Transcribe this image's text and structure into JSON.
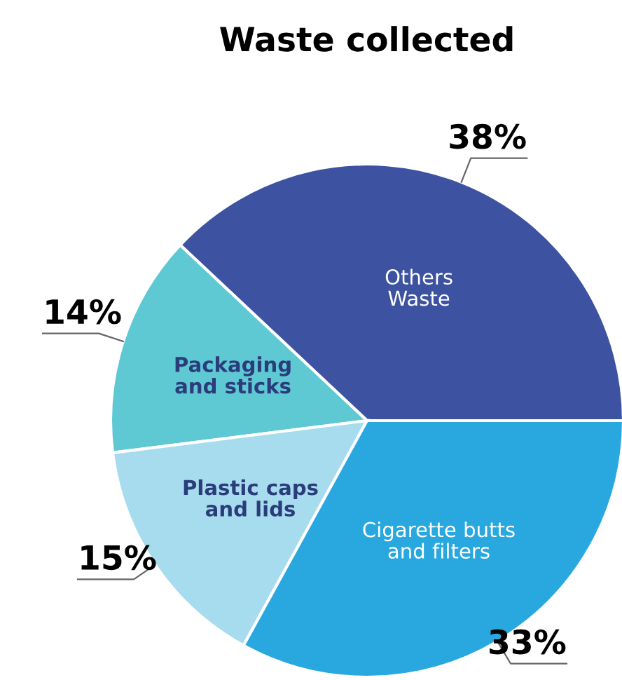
{
  "chart_data": {
    "type": "pie",
    "title": "Waste collected",
    "categories": [
      "Others\nWaste",
      "Packaging\nand sticks",
      "Plastic caps\nand lids",
      "Cigarette butts\nand filters"
    ],
    "values": [
      38,
      14,
      15,
      33
    ],
    "colors": [
      "#3d52a1",
      "#5ec8d3",
      "#a6dcee",
      "#29a8e0"
    ],
    "value_labels": [
      "38%",
      "14%",
      "15%",
      "33%"
    ]
  }
}
